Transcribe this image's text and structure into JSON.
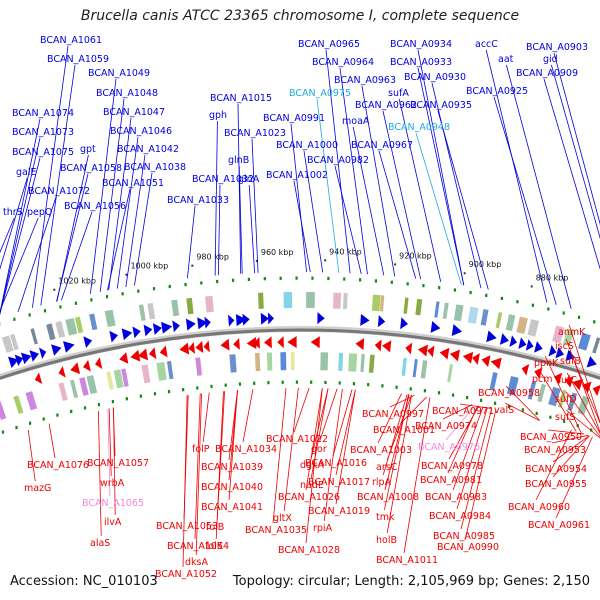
{
  "title": "Brucella canis ATCC 23365 chromosome I, complete sequence",
  "footer": {
    "accession": "Accession: NC_010103",
    "summary": "Topology: circular; Length: 2,105,969 bp; Genes: 2,150"
  },
  "colors": {
    "forward": "#0000dd",
    "reverse": "#ee0000",
    "rna_forward": "#22aadd",
    "rna_reverse": "#ee88dd",
    "backbone": "#777777",
    "tick": "#118811"
  },
  "kbp_ticks": [
    "1020 kbp",
    "1000 kbp",
    "980 kbp",
    "960 kbp",
    "940 kbp",
    "920 kbp",
    "900 kbp",
    "880 kbp"
  ],
  "top_labels": [
    {
      "text": "BCAN_A1061",
      "kind": "forward"
    },
    {
      "text": "BCAN_A1059",
      "kind": "forward"
    },
    {
      "text": "BCAN_A1049",
      "kind": "forward"
    },
    {
      "text": "BCAN_A1048",
      "kind": "forward"
    },
    {
      "text": "BCAN_A1074",
      "kind": "forward"
    },
    {
      "text": "BCAN_A1047",
      "kind": "forward"
    },
    {
      "text": "BCAN_A1073",
      "kind": "forward"
    },
    {
      "text": "BCAN_A1046",
      "kind": "forward"
    },
    {
      "text": "BCAN_A1075",
      "kind": "forward"
    },
    {
      "text": "gpt",
      "kind": "forward"
    },
    {
      "text": "BCAN_A1042",
      "kind": "forward"
    },
    {
      "text": "BCAN_A1058",
      "kind": "forward"
    },
    {
      "text": "BCAN_A1038",
      "kind": "forward"
    },
    {
      "text": "galE",
      "kind": "forward"
    },
    {
      "text": "BCAN_A1051",
      "kind": "forward"
    },
    {
      "text": "BCAN_A1072",
      "kind": "forward"
    },
    {
      "text": "thrS",
      "kind": "forward"
    },
    {
      "text": "pepQ",
      "kind": "forward"
    },
    {
      "text": "BCAN_A1056",
      "kind": "forward"
    },
    {
      "text": "BCAN_A1015",
      "kind": "forward"
    },
    {
      "text": "gph",
      "kind": "forward"
    },
    {
      "text": "BCAN_A1023",
      "kind": "forward"
    },
    {
      "text": "glnB",
      "kind": "forward"
    },
    {
      "text": "BCAN_A1032",
      "kind": "forward"
    },
    {
      "text": "glnA",
      "kind": "forward"
    },
    {
      "text": "BCAN_A1033",
      "kind": "forward"
    },
    {
      "text": "BCAN_A0965",
      "kind": "forward"
    },
    {
      "text": "BCAN_A0934",
      "kind": "forward"
    },
    {
      "text": "BCAN_A0964",
      "kind": "forward"
    },
    {
      "text": "BCAN_A0933",
      "kind": "forward"
    },
    {
      "text": "BCAN_A0963",
      "kind": "forward"
    },
    {
      "text": "BCAN_A0930",
      "kind": "forward"
    },
    {
      "text": "BCAN_A0975",
      "kind": "rna_forward"
    },
    {
      "text": "sufA",
      "kind": "forward"
    },
    {
      "text": "BCAN_A0962",
      "kind": "forward"
    },
    {
      "text": "BCAN_A0935",
      "kind": "forward"
    },
    {
      "text": "BCAN_A0991",
      "kind": "forward"
    },
    {
      "text": "moaA",
      "kind": "forward"
    },
    {
      "text": "BCAN_A0948",
      "kind": "rna_forward"
    },
    {
      "text": "BCAN_A1000",
      "kind": "forward"
    },
    {
      "text": "BCAN_A0967",
      "kind": "forward"
    },
    {
      "text": "BCAN_A0982",
      "kind": "forward"
    },
    {
      "text": "BCAN_A1002",
      "kind": "forward"
    },
    {
      "text": "accC",
      "kind": "forward"
    },
    {
      "text": "aat",
      "kind": "forward"
    },
    {
      "text": "BCAN_A0903",
      "kind": "forward"
    },
    {
      "text": "gid",
      "kind": "forward"
    },
    {
      "text": "BCAN_A0909",
      "kind": "forward"
    },
    {
      "text": "BCAN_A0925",
      "kind": "forward"
    }
  ],
  "bottom_labels": [
    {
      "text": "anmK",
      "kind": "reverse"
    },
    {
      "text": "iscS",
      "kind": "reverse"
    },
    {
      "text": "sufB",
      "kind": "reverse"
    },
    {
      "text": "ppnK",
      "kind": "reverse"
    },
    {
      "text": "pcm",
      "kind": "reverse"
    },
    {
      "text": "sufC",
      "kind": "reverse"
    },
    {
      "text": "BCAN_A0958",
      "kind": "reverse"
    },
    {
      "text": "sufD",
      "kind": "reverse"
    },
    {
      "text": "valS",
      "kind": "reverse"
    },
    {
      "text": "sufS",
      "kind": "reverse"
    },
    {
      "text": "BCAN_A0997",
      "kind": "reverse"
    },
    {
      "text": "BCAN_A0971",
      "kind": "reverse"
    },
    {
      "text": "BCAN_A1001",
      "kind": "reverse"
    },
    {
      "text": "BCAN_A0974",
      "kind": "reverse"
    },
    {
      "text": "BCAN_A0950",
      "kind": "reverse"
    },
    {
      "text": "BCAN_A1022",
      "kind": "reverse"
    },
    {
      "text": "BCAN_A1003",
      "kind": "reverse"
    },
    {
      "text": "BCAN_A0976",
      "kind": "rna_reverse"
    },
    {
      "text": "BCAN_A0953",
      "kind": "reverse"
    },
    {
      "text": "BCAN_A1076",
      "kind": "reverse"
    },
    {
      "text": "BCAN_A1057",
      "kind": "reverse"
    },
    {
      "text": "folP",
      "kind": "reverse"
    },
    {
      "text": "BCAN_A1034",
      "kind": "reverse"
    },
    {
      "text": "gor",
      "kind": "reverse"
    },
    {
      "text": "BCAN_A1016",
      "kind": "reverse"
    },
    {
      "text": "BCAN_A0978",
      "kind": "reverse"
    },
    {
      "text": "BCAN_A0954",
      "kind": "reverse"
    },
    {
      "text": "BCAN_A1039",
      "kind": "reverse"
    },
    {
      "text": "dgkA",
      "kind": "reverse"
    },
    {
      "text": "arsC",
      "kind": "reverse"
    },
    {
      "text": "mazG",
      "kind": "reverse"
    },
    {
      "text": "wrbA",
      "kind": "reverse"
    },
    {
      "text": "nadE",
      "kind": "reverse"
    },
    {
      "text": "BCAN_A1017",
      "kind": "reverse"
    },
    {
      "text": "rlpA",
      "kind": "reverse"
    },
    {
      "text": "BCAN_A0981",
      "kind": "reverse"
    },
    {
      "text": "BCAN_A1040",
      "kind": "reverse"
    },
    {
      "text": "BCAN_A0955",
      "kind": "reverse"
    },
    {
      "text": "BCAN_A1065",
      "kind": "rna_reverse"
    },
    {
      "text": "BCAN_A1026",
      "kind": "reverse"
    },
    {
      "text": "BCAN_A1008",
      "kind": "reverse"
    },
    {
      "text": "BCAN_A0983",
      "kind": "reverse"
    },
    {
      "text": "BCAN_A1041",
      "kind": "reverse"
    },
    {
      "text": "BCAN_A1019",
      "kind": "reverse"
    },
    {
      "text": "ilvA",
      "kind": "reverse"
    },
    {
      "text": "gltX",
      "kind": "reverse"
    },
    {
      "text": "BCAN_A0960",
      "kind": "reverse"
    },
    {
      "text": "tmk",
      "kind": "reverse"
    },
    {
      "text": "BCAN_A0984",
      "kind": "reverse"
    },
    {
      "text": "BCAN_A0961",
      "kind": "reverse"
    },
    {
      "text": "alaS",
      "kind": "reverse"
    },
    {
      "text": "BCAN_A1053",
      "kind": "reverse"
    },
    {
      "text": "folB",
      "kind": "reverse"
    },
    {
      "text": "BCAN_A1035",
      "kind": "reverse"
    },
    {
      "text": "rpiA",
      "kind": "reverse"
    },
    {
      "text": "holB",
      "kind": "reverse"
    },
    {
      "text": "BCAN_A0985",
      "kind": "reverse"
    },
    {
      "text": "BCAN_A1054",
      "kind": "reverse"
    },
    {
      "text": "folK",
      "kind": "reverse"
    },
    {
      "text": "BCAN_A1028",
      "kind": "reverse"
    },
    {
      "text": "BCAN_A0990",
      "kind": "reverse"
    },
    {
      "text": "dksA",
      "kind": "reverse"
    },
    {
      "text": "BCAN_A1011",
      "kind": "reverse"
    },
    {
      "text": "BCAN_A1052",
      "kind": "reverse"
    }
  ]
}
